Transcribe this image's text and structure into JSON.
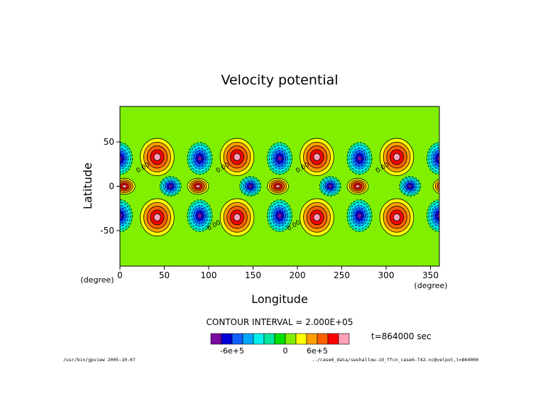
{
  "chart_data": {
    "type": "heatmap",
    "title": "Velocity potential",
    "xlabel": "Longitude",
    "ylabel": "Latitude",
    "x_unit": "(degree)",
    "y_unit": "(degree)",
    "xlim": [
      0,
      360
    ],
    "ylim": [
      -90,
      90
    ],
    "x_ticks": [
      "0",
      "50",
      "100",
      "150",
      "200",
      "250",
      "300",
      "350"
    ],
    "y_ticks": [
      "50",
      "0",
      "-50"
    ],
    "contour_interval_text": "CONTOUR INTERVAL = 2.000E+05",
    "contour_interval": 200000,
    "time_label": "t=864000 sec",
    "colorbar_labels": [
      "-6e+5",
      "0",
      "6e+5"
    ],
    "colorbar_colors": [
      "#7a0aa0",
      "#0000d8",
      "#1060ff",
      "#00a8ff",
      "#00f0f0",
      "#00e8a0",
      "#00e000",
      "#80f000",
      "#ffff00",
      "#ffa000",
      "#ff6000",
      "#ff0000",
      "#ffa0b8"
    ],
    "contour_labels": [
      "0.00",
      "0.00",
      "0.00",
      "0.00",
      "0.00",
      "0.00"
    ],
    "wavenumber": 4,
    "features": {
      "midlatitude_maxima_lon": [
        42,
        132,
        222,
        312
      ],
      "midlatitude_minima_lon": [
        0,
        90,
        180,
        270
      ],
      "midlatitude_lat": [
        33,
        -35
      ],
      "equatorial_maxima_lon": [
        5,
        88,
        178,
        268
      ],
      "equatorial_minima_lon": [
        57,
        147,
        237,
        327
      ],
      "peak_value": 700000
    }
  },
  "footer": {
    "left": "/usr/bin/gpview  2005-10-07",
    "right": "../case6_data/swshallow-zd_ffcn_case6-T42.nc@velpot,t=864000"
  }
}
